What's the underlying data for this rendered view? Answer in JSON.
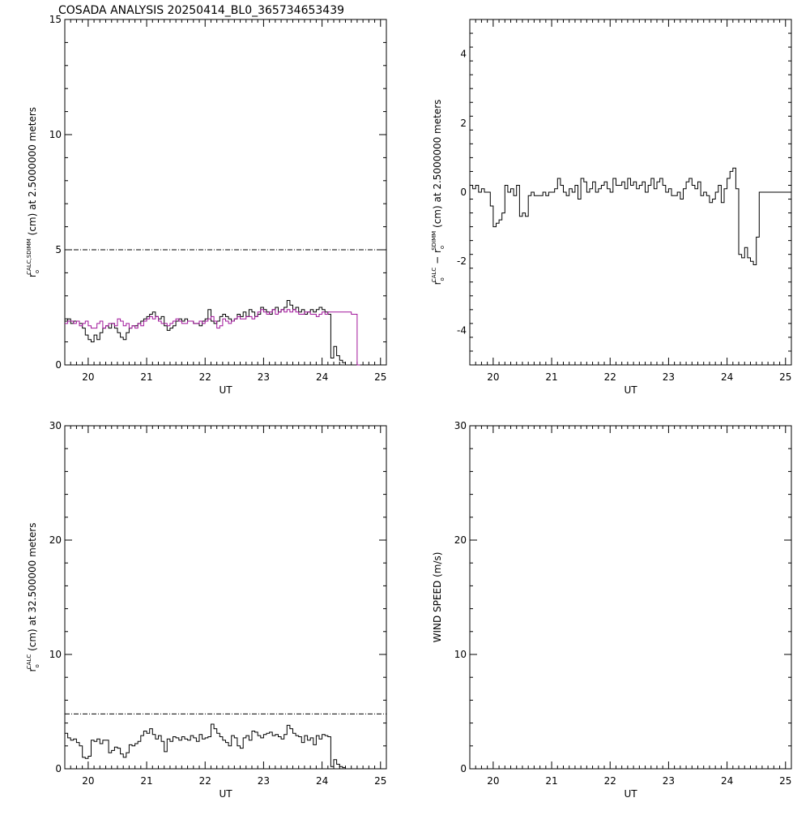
{
  "title": "COSADA ANALYSIS 20250414_BL0_365734653439",
  "colors": {
    "black": "#000000",
    "magenta": "#a0149a"
  },
  "chart_data": [
    {
      "id": "p1",
      "type": "line",
      "xlabel": "UT",
      "ylabel": "r_o^{CALC,SDIMM} (cm) at 2.5000000 meters",
      "ylabel_parts": {
        "base": "r",
        "sub": "o",
        "sup": "CALC,SDIMM",
        "rest": " (cm)  at  2.5000000 meters"
      },
      "xlim": [
        19.6,
        25.1
      ],
      "ylim": [
        0,
        15
      ],
      "xticks": [
        "20",
        "21",
        "22",
        "23",
        "24",
        "25"
      ],
      "yticks": [
        "0",
        "5",
        "10",
        "15"
      ],
      "xtick_values": [
        20,
        21,
        22,
        23,
        24,
        25
      ],
      "ytick_values": [
        0,
        5,
        10,
        15
      ],
      "hline": 5,
      "series": [
        {
          "color": "#000000",
          "step": true,
          "x": [
            19.6,
            19.65,
            19.7,
            19.75,
            19.8,
            19.85,
            19.9,
            19.95,
            20.0,
            20.05,
            20.1,
            20.15,
            20.2,
            20.25,
            20.3,
            20.35,
            20.4,
            20.45,
            20.5,
            20.55,
            20.6,
            20.65,
            20.7,
            20.75,
            20.8,
            20.85,
            20.9,
            20.95,
            21.0,
            21.05,
            21.1,
            21.15,
            21.2,
            21.25,
            21.3,
            21.35,
            21.4,
            21.45,
            21.5,
            21.55,
            21.6,
            21.65,
            21.7,
            21.75,
            21.8,
            21.85,
            21.9,
            21.95,
            22.0,
            22.05,
            22.1,
            22.15,
            22.2,
            22.25,
            22.3,
            22.35,
            22.4,
            22.45,
            22.5,
            22.55,
            22.6,
            22.65,
            22.7,
            22.75,
            22.8,
            22.85,
            22.9,
            22.95,
            23.0,
            23.05,
            23.1,
            23.15,
            23.2,
            23.25,
            23.3,
            23.35,
            23.4,
            23.45,
            23.5,
            23.55,
            23.6,
            23.65,
            23.7,
            23.75,
            23.8,
            23.85,
            23.9,
            23.95,
            24.0,
            24.05,
            24.1,
            24.15,
            24.2,
            24.25,
            24.3,
            24.35,
            24.4,
            24.45,
            24.5,
            24.55,
            24.6
          ],
          "y": [
            1.9,
            2.0,
            1.8,
            1.9,
            1.9,
            1.8,
            1.6,
            1.3,
            1.1,
            1.0,
            1.3,
            1.1,
            1.4,
            1.6,
            1.7,
            1.6,
            1.8,
            1.6,
            1.4,
            1.2,
            1.1,
            1.4,
            1.6,
            1.7,
            1.7,
            1.8,
            1.9,
            2.0,
            2.1,
            2.2,
            2.3,
            2.1,
            2.0,
            2.1,
            1.7,
            1.5,
            1.6,
            1.7,
            1.9,
            2.0,
            1.9,
            2.0,
            1.9,
            1.9,
            1.8,
            1.8,
            1.7,
            1.9,
            2.0,
            2.4,
            1.9,
            1.8,
            1.9,
            2.1,
            2.2,
            2.1,
            2.0,
            1.9,
            2.0,
            2.2,
            2.1,
            2.3,
            2.1,
            2.4,
            2.3,
            2.1,
            2.2,
            2.5,
            2.4,
            2.3,
            2.2,
            2.4,
            2.5,
            2.3,
            2.4,
            2.5,
            2.8,
            2.6,
            2.4,
            2.5,
            2.3,
            2.4,
            2.2,
            2.3,
            2.4,
            2.3,
            2.4,
            2.5,
            2.4,
            2.3,
            2.2,
            0.3,
            0.8,
            0.4,
            0.2,
            0.1,
            0.0,
            0.0,
            0.0,
            0.0,
            0.0
          ]
        },
        {
          "color": "#a0149a",
          "step": true,
          "x": [
            19.6,
            19.65,
            19.7,
            19.75,
            19.8,
            19.85,
            19.9,
            19.95,
            20.0,
            20.05,
            20.1,
            20.15,
            20.2,
            20.25,
            20.3,
            20.35,
            20.4,
            20.45,
            20.5,
            20.55,
            20.6,
            20.65,
            20.7,
            20.75,
            20.8,
            20.85,
            20.9,
            20.95,
            21.0,
            21.05,
            21.1,
            21.15,
            21.2,
            21.25,
            21.3,
            21.35,
            21.4,
            21.45,
            21.5,
            21.55,
            21.6,
            21.65,
            21.7,
            21.75,
            21.8,
            21.85,
            21.9,
            21.95,
            22.0,
            22.05,
            22.1,
            22.15,
            22.2,
            22.25,
            22.3,
            22.35,
            22.4,
            22.45,
            22.5,
            22.55,
            22.6,
            22.65,
            22.7,
            22.75,
            22.8,
            22.85,
            22.9,
            22.95,
            23.0,
            23.05,
            23.1,
            23.15,
            23.2,
            23.25,
            23.3,
            23.35,
            23.4,
            23.45,
            23.5,
            23.55,
            23.6,
            23.65,
            23.7,
            23.75,
            23.8,
            23.85,
            23.9,
            23.95,
            24.0,
            24.05,
            24.1,
            24.15,
            24.2,
            24.25,
            24.3,
            24.35,
            24.4,
            24.45,
            24.5,
            24.55,
            24.6
          ],
          "y": [
            1.8,
            1.9,
            1.9,
            1.8,
            1.9,
            1.7,
            1.8,
            1.9,
            1.7,
            1.6,
            1.6,
            1.8,
            1.9,
            1.6,
            1.7,
            1.8,
            1.8,
            1.7,
            2.0,
            1.9,
            1.7,
            1.8,
            1.6,
            1.7,
            1.6,
            1.8,
            1.7,
            1.9,
            2.0,
            2.1,
            2.0,
            2.1,
            1.9,
            1.8,
            1.8,
            1.7,
            1.8,
            1.9,
            2.0,
            1.9,
            1.8,
            1.8,
            1.9,
            1.9,
            1.8,
            1.8,
            1.9,
            1.8,
            1.9,
            2.0,
            2.1,
            1.9,
            1.6,
            1.7,
            2.0,
            1.9,
            1.8,
            1.9,
            2.0,
            2.1,
            2.0,
            2.0,
            2.1,
            2.1,
            2.0,
            2.1,
            2.3,
            2.4,
            2.3,
            2.2,
            2.3,
            2.4,
            2.2,
            2.3,
            2.4,
            2.3,
            2.4,
            2.3,
            2.4,
            2.3,
            2.2,
            2.2,
            2.3,
            2.3,
            2.2,
            2.2,
            2.1,
            2.2,
            2.3,
            2.2,
            2.3,
            2.3,
            2.3,
            2.3,
            2.3,
            2.3,
            2.3,
            2.3,
            2.2,
            2.2,
            0.0
          ]
        }
      ]
    },
    {
      "id": "p2",
      "type": "line",
      "xlabel": "UT",
      "ylabel": "r_o^{CALC} - r_o^{SDIMM} (cm) at 2.5000000 meters",
      "ylabel_parts": {
        "base1": "r",
        "sub1": "o",
        "sup1": "CALC",
        "mid": "  −  r",
        "sub2": "o",
        "sup2": "SDIMM",
        "rest": " (cm) at 2.5000000 meters"
      },
      "xlim": [
        19.6,
        25.1
      ],
      "ylim": [
        -5,
        5
      ],
      "xticks": [
        "20",
        "21",
        "22",
        "23",
        "24",
        "25"
      ],
      "yticks": [
        "-4",
        "-2",
        "0",
        "2",
        "4"
      ],
      "xtick_values": [
        20,
        21,
        22,
        23,
        24,
        25
      ],
      "ytick_values": [
        -4,
        -2,
        0,
        2,
        4
      ],
      "series": [
        {
          "color": "#000000",
          "step": true,
          "x": [
            19.6,
            19.65,
            19.7,
            19.75,
            19.8,
            19.85,
            19.9,
            19.95,
            20.0,
            20.05,
            20.1,
            20.15,
            20.2,
            20.25,
            20.3,
            20.35,
            20.4,
            20.45,
            20.5,
            20.55,
            20.6,
            20.65,
            20.7,
            20.75,
            20.8,
            20.85,
            20.9,
            20.95,
            21.0,
            21.05,
            21.1,
            21.15,
            21.2,
            21.25,
            21.3,
            21.35,
            21.4,
            21.45,
            21.5,
            21.55,
            21.6,
            21.65,
            21.7,
            21.75,
            21.8,
            21.85,
            21.9,
            21.95,
            22.0,
            22.05,
            22.1,
            22.15,
            22.2,
            22.25,
            22.3,
            22.35,
            22.4,
            22.45,
            22.5,
            22.55,
            22.6,
            22.65,
            22.7,
            22.75,
            22.8,
            22.85,
            22.9,
            22.95,
            23.0,
            23.05,
            23.1,
            23.15,
            23.2,
            23.25,
            23.3,
            23.35,
            23.4,
            23.45,
            23.5,
            23.55,
            23.6,
            23.65,
            23.7,
            23.75,
            23.8,
            23.85,
            23.9,
            23.95,
            24.0,
            24.05,
            24.1,
            24.15,
            24.2,
            24.25,
            24.3,
            24.35,
            24.4,
            24.45,
            24.5,
            24.55,
            24.6,
            25.1
          ],
          "y": [
            0.2,
            0.1,
            0.2,
            0.0,
            0.1,
            0.0,
            0.0,
            -0.4,
            -1.0,
            -0.9,
            -0.8,
            -0.6,
            0.2,
            0.0,
            0.1,
            -0.1,
            0.2,
            -0.7,
            -0.6,
            -0.7,
            -0.1,
            0.0,
            -0.1,
            -0.1,
            -0.1,
            0.0,
            -0.1,
            0.0,
            0.0,
            0.1,
            0.4,
            0.2,
            0.0,
            -0.1,
            0.1,
            0.0,
            0.2,
            -0.2,
            0.4,
            0.3,
            0.0,
            0.1,
            0.3,
            0.0,
            0.1,
            0.2,
            0.3,
            0.1,
            0.0,
            0.4,
            0.2,
            0.2,
            0.3,
            0.1,
            0.4,
            0.2,
            0.3,
            0.1,
            0.2,
            0.3,
            0.0,
            0.2,
            0.4,
            0.1,
            0.3,
            0.4,
            0.2,
            0.0,
            0.1,
            -0.1,
            -0.1,
            0.0,
            -0.2,
            0.1,
            0.3,
            0.4,
            0.2,
            0.1,
            0.3,
            -0.1,
            0.0,
            -0.1,
            -0.3,
            -0.2,
            0.0,
            0.2,
            -0.3,
            0.1,
            0.4,
            0.6,
            0.7,
            0.1,
            -1.8,
            -1.9,
            -1.6,
            -1.9,
            -2.0,
            -2.1,
            -1.3,
            0.0,
            0.0,
            0.0
          ]
        }
      ]
    },
    {
      "id": "p3",
      "type": "line",
      "xlabel": "UT",
      "ylabel": "r_o^{CALC} (cm) at 32.500000 meters",
      "ylabel_parts": {
        "base": "r",
        "sub": "o",
        "sup": "CALC",
        "rest": " (cm) at 32.500000 meters"
      },
      "xlim": [
        19.6,
        25.1
      ],
      "ylim": [
        0,
        30
      ],
      "xticks": [
        "20",
        "21",
        "22",
        "23",
        "24",
        "25"
      ],
      "yticks": [
        "0",
        "10",
        "20",
        "30"
      ],
      "xtick_values": [
        20,
        21,
        22,
        23,
        24,
        25
      ],
      "ytick_values": [
        0,
        10,
        20,
        30
      ],
      "hline": 4.8,
      "series": [
        {
          "color": "#000000",
          "step": true,
          "x": [
            19.6,
            19.65,
            19.7,
            19.75,
            19.8,
            19.85,
            19.9,
            19.95,
            20.0,
            20.05,
            20.1,
            20.15,
            20.2,
            20.25,
            20.3,
            20.35,
            20.4,
            20.45,
            20.5,
            20.55,
            20.6,
            20.65,
            20.7,
            20.75,
            20.8,
            20.85,
            20.9,
            20.95,
            21.0,
            21.05,
            21.1,
            21.15,
            21.2,
            21.25,
            21.3,
            21.35,
            21.4,
            21.45,
            21.5,
            21.55,
            21.6,
            21.65,
            21.7,
            21.75,
            21.8,
            21.85,
            21.9,
            21.95,
            22.0,
            22.05,
            22.1,
            22.15,
            22.2,
            22.25,
            22.3,
            22.35,
            22.4,
            22.45,
            22.5,
            22.55,
            22.6,
            22.65,
            22.7,
            22.75,
            22.8,
            22.85,
            22.9,
            22.95,
            23.0,
            23.05,
            23.1,
            23.15,
            23.2,
            23.25,
            23.3,
            23.35,
            23.4,
            23.45,
            23.5,
            23.55,
            23.6,
            23.65,
            23.7,
            23.75,
            23.8,
            23.85,
            23.9,
            23.95,
            24.0,
            24.05,
            24.1,
            24.15,
            24.2,
            24.25,
            24.3,
            24.35,
            24.4,
            24.45,
            24.5,
            24.55,
            24.6
          ],
          "y": [
            3.1,
            2.7,
            2.5,
            2.6,
            2.3,
            2.0,
            1.0,
            0.9,
            1.1,
            2.5,
            2.4,
            2.6,
            2.2,
            2.5,
            2.5,
            1.4,
            1.6,
            1.9,
            1.8,
            1.3,
            1.0,
            1.4,
            2.1,
            2.0,
            2.2,
            2.4,
            2.9,
            3.3,
            3.1,
            3.5,
            3.0,
            2.6,
            2.9,
            2.4,
            1.5,
            2.6,
            2.4,
            2.8,
            2.7,
            2.5,
            2.8,
            2.6,
            2.5,
            2.9,
            2.7,
            2.4,
            3.0,
            2.6,
            2.7,
            2.8,
            3.9,
            3.5,
            3.1,
            2.8,
            2.5,
            2.3,
            2.0,
            2.9,
            2.7,
            2.0,
            1.8,
            2.7,
            2.9,
            2.5,
            3.3,
            3.2,
            2.9,
            2.7,
            3.0,
            3.1,
            3.2,
            2.9,
            3.0,
            2.8,
            2.6,
            3.0,
            3.8,
            3.5,
            3.1,
            2.9,
            2.8,
            2.3,
            2.9,
            2.5,
            2.7,
            2.1,
            2.9,
            2.6,
            3.0,
            2.9,
            2.8,
            0.2,
            0.8,
            0.4,
            0.2,
            0.1,
            0.0,
            0.0,
            0.0,
            0.0,
            0.0
          ]
        }
      ]
    },
    {
      "id": "p4",
      "type": "line",
      "xlabel": "UT",
      "ylabel": "WIND SPEED (m/s)",
      "ylabel_parts": {
        "rest": "WIND SPEED (m/s)"
      },
      "xlim": [
        19.6,
        25.1
      ],
      "ylim": [
        0,
        30
      ],
      "xticks": [
        "20",
        "21",
        "22",
        "23",
        "24",
        "25"
      ],
      "yticks": [
        "0",
        "10",
        "20",
        "30"
      ],
      "xtick_values": [
        20,
        21,
        22,
        23,
        24,
        25
      ],
      "ytick_values": [
        0,
        10,
        20,
        30
      ],
      "series": []
    }
  ]
}
